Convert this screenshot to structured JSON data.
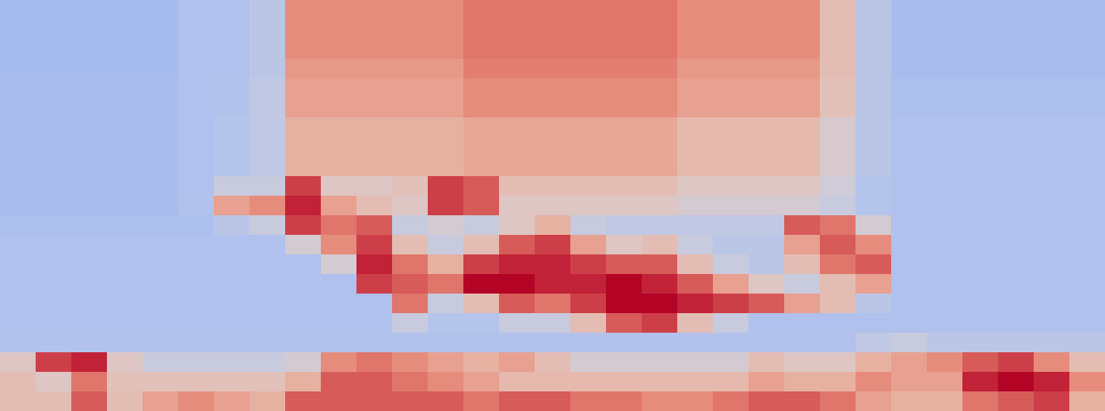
{
  "chart_data": {
    "type": "heatmap",
    "tick_labels": false,
    "zlim": [
      0,
      1
    ],
    "cells": [
      [
        0.33,
        0.33,
        0.33,
        0.33,
        0.33,
        0.36,
        0.36,
        0.4,
        0.75,
        0.75,
        0.75,
        0.75,
        0.75,
        0.8,
        0.8,
        0.8,
        0.8,
        0.8,
        0.8,
        0.75,
        0.75,
        0.75,
        0.75,
        0.6,
        0.4,
        0.34,
        0.34,
        0.34,
        0.34,
        0.34,
        0.34
      ],
      [
        0.33,
        0.33,
        0.33,
        0.33,
        0.33,
        0.36,
        0.36,
        0.4,
        0.75,
        0.75,
        0.75,
        0.75,
        0.75,
        0.8,
        0.8,
        0.8,
        0.8,
        0.8,
        0.8,
        0.75,
        0.75,
        0.75,
        0.75,
        0.6,
        0.4,
        0.34,
        0.34,
        0.34,
        0.34,
        0.34,
        0.34
      ],
      [
        0.33,
        0.33,
        0.33,
        0.33,
        0.33,
        0.36,
        0.36,
        0.4,
        0.75,
        0.75,
        0.75,
        0.75,
        0.75,
        0.8,
        0.8,
        0.8,
        0.8,
        0.8,
        0.8,
        0.75,
        0.75,
        0.75,
        0.75,
        0.6,
        0.4,
        0.34,
        0.34,
        0.34,
        0.34,
        0.34,
        0.34
      ],
      [
        0.33,
        0.33,
        0.33,
        0.33,
        0.33,
        0.36,
        0.36,
        0.4,
        0.72,
        0.72,
        0.72,
        0.72,
        0.72,
        0.78,
        0.78,
        0.78,
        0.78,
        0.78,
        0.78,
        0.72,
        0.72,
        0.72,
        0.72,
        0.6,
        0.4,
        0.34,
        0.34,
        0.34,
        0.34,
        0.34,
        0.34
      ],
      [
        0.34,
        0.34,
        0.34,
        0.34,
        0.34,
        0.36,
        0.37,
        0.42,
        0.7,
        0.7,
        0.7,
        0.7,
        0.7,
        0.75,
        0.75,
        0.75,
        0.75,
        0.75,
        0.75,
        0.7,
        0.7,
        0.7,
        0.7,
        0.58,
        0.4,
        0.35,
        0.35,
        0.35,
        0.35,
        0.35,
        0.35
      ],
      [
        0.34,
        0.34,
        0.34,
        0.34,
        0.34,
        0.36,
        0.37,
        0.42,
        0.7,
        0.7,
        0.7,
        0.7,
        0.7,
        0.75,
        0.75,
        0.75,
        0.75,
        0.75,
        0.75,
        0.7,
        0.7,
        0.7,
        0.7,
        0.58,
        0.4,
        0.35,
        0.35,
        0.35,
        0.35,
        0.35,
        0.35
      ],
      [
        0.34,
        0.34,
        0.34,
        0.34,
        0.34,
        0.36,
        0.38,
        0.42,
        0.65,
        0.65,
        0.65,
        0.65,
        0.65,
        0.68,
        0.68,
        0.68,
        0.68,
        0.68,
        0.68,
        0.62,
        0.62,
        0.62,
        0.62,
        0.52,
        0.4,
        0.36,
        0.36,
        0.36,
        0.36,
        0.36,
        0.36
      ],
      [
        0.34,
        0.34,
        0.34,
        0.34,
        0.34,
        0.36,
        0.38,
        0.42,
        0.65,
        0.65,
        0.65,
        0.65,
        0.65,
        0.68,
        0.68,
        0.68,
        0.68,
        0.68,
        0.68,
        0.62,
        0.62,
        0.62,
        0.62,
        0.52,
        0.4,
        0.36,
        0.36,
        0.36,
        0.36,
        0.36,
        0.36
      ],
      [
        0.34,
        0.34,
        0.34,
        0.34,
        0.34,
        0.36,
        0.38,
        0.42,
        0.65,
        0.65,
        0.65,
        0.65,
        0.65,
        0.68,
        0.68,
        0.68,
        0.68,
        0.68,
        0.68,
        0.62,
        0.62,
        0.62,
        0.62,
        0.52,
        0.4,
        0.36,
        0.36,
        0.36,
        0.36,
        0.36,
        0.36
      ],
      [
        0.34,
        0.34,
        0.34,
        0.34,
        0.34,
        0.36,
        0.45,
        0.45,
        0.9,
        0.55,
        0.55,
        0.58,
        0.9,
        0.85,
        0.6,
        0.6,
        0.6,
        0.6,
        0.6,
        0.55,
        0.55,
        0.55,
        0.55,
        0.48,
        0.38,
        0.36,
        0.36,
        0.36,
        0.36,
        0.36,
        0.36
      ],
      [
        0.34,
        0.34,
        0.34,
        0.34,
        0.34,
        0.37,
        0.7,
        0.75,
        0.95,
        0.7,
        0.6,
        0.55,
        0.9,
        0.85,
        0.55,
        0.55,
        0.55,
        0.55,
        0.55,
        0.5,
        0.5,
        0.5,
        0.5,
        0.45,
        0.38,
        0.36,
        0.36,
        0.36,
        0.36,
        0.36,
        0.36
      ],
      [
        0.35,
        0.35,
        0.35,
        0.35,
        0.35,
        0.35,
        0.4,
        0.45,
        0.9,
        0.8,
        0.85,
        0.45,
        0.5,
        0.45,
        0.55,
        0.65,
        0.45,
        0.42,
        0.42,
        0.42,
        0.42,
        0.42,
        0.85,
        0.8,
        0.5,
        0.36,
        0.36,
        0.36,
        0.36,
        0.36,
        0.36
      ],
      [
        0.36,
        0.36,
        0.36,
        0.36,
        0.36,
        0.36,
        0.36,
        0.36,
        0.5,
        0.75,
        0.9,
        0.6,
        0.45,
        0.6,
        0.85,
        0.9,
        0.7,
        0.55,
        0.6,
        0.45,
        0.4,
        0.4,
        0.7,
        0.85,
        0.75,
        0.36,
        0.36,
        0.36,
        0.36,
        0.36,
        0.36
      ],
      [
        0.36,
        0.36,
        0.36,
        0.36,
        0.36,
        0.36,
        0.36,
        0.36,
        0.36,
        0.5,
        0.95,
        0.8,
        0.65,
        0.9,
        0.95,
        0.95,
        0.9,
        0.85,
        0.85,
        0.6,
        0.45,
        0.4,
        0.6,
        0.8,
        0.85,
        0.36,
        0.36,
        0.36,
        0.36,
        0.36,
        0.36
      ],
      [
        0.36,
        0.36,
        0.36,
        0.36,
        0.36,
        0.36,
        0.36,
        0.36,
        0.36,
        0.36,
        0.9,
        0.85,
        0.8,
        1,
        1,
        0.95,
        0.95,
        1,
        0.95,
        0.85,
        0.7,
        0.55,
        0.45,
        0.6,
        0.7,
        0.36,
        0.36,
        0.36,
        0.36,
        0.36,
        0.36
      ],
      [
        0.36,
        0.36,
        0.36,
        0.36,
        0.36,
        0.36,
        0.36,
        0.36,
        0.36,
        0.36,
        0.36,
        0.8,
        0.45,
        0.6,
        0.85,
        0.8,
        0.9,
        1,
        1,
        0.95,
        0.9,
        0.85,
        0.7,
        0.6,
        0.4,
        0.36,
        0.36,
        0.36,
        0.36,
        0.36,
        0.36
      ],
      [
        0.36,
        0.36,
        0.36,
        0.36,
        0.36,
        0.36,
        0.36,
        0.36,
        0.36,
        0.36,
        0.36,
        0.45,
        0.38,
        0.38,
        0.45,
        0.45,
        0.6,
        0.85,
        0.9,
        0.6,
        0.45,
        0.36,
        0.36,
        0.36,
        0.36,
        0.36,
        0.36,
        0.36,
        0.36,
        0.36,
        0.36
      ],
      [
        0.37,
        0.37,
        0.37,
        0.37,
        0.37,
        0.37,
        0.37,
        0.37,
        0.37,
        0.37,
        0.37,
        0.37,
        0.37,
        0.37,
        0.37,
        0.37,
        0.37,
        0.37,
        0.37,
        0.37,
        0.37,
        0.37,
        0.37,
        0.37,
        0.42,
        0.45,
        0.4,
        0.4,
        0.4,
        0.4,
        0.4
      ],
      [
        0.55,
        0.9,
        0.95,
        0.55,
        0.45,
        0.45,
        0.45,
        0.45,
        0.5,
        0.75,
        0.8,
        0.75,
        0.7,
        0.65,
        0.7,
        0.6,
        0.5,
        0.5,
        0.5,
        0.5,
        0.5,
        0.6,
        0.55,
        0.55,
        0.65,
        0.7,
        0.75,
        0.85,
        0.9,
        0.75,
        0.6
      ],
      [
        0.6,
        0.55,
        0.8,
        0.58,
        0.58,
        0.58,
        0.58,
        0.58,
        0.65,
        0.85,
        0.85,
        0.8,
        0.75,
        0.7,
        0.62,
        0.62,
        0.62,
        0.62,
        0.62,
        0.62,
        0.62,
        0.7,
        0.65,
        0.65,
        0.75,
        0.7,
        0.7,
        0.95,
        1,
        0.95,
        0.75
      ],
      [
        0.6,
        0.6,
        0.85,
        0.6,
        0.7,
        0.75,
        0.7,
        0.65,
        0.85,
        0.85,
        0.85,
        0.85,
        0.85,
        0.8,
        0.85,
        0.85,
        0.8,
        0.8,
        0.75,
        0.75,
        0.8,
        0.85,
        0.85,
        0.8,
        0.7,
        0.65,
        0.65,
        0.8,
        0.85,
        0.9,
        0.65
      ]
    ]
  }
}
